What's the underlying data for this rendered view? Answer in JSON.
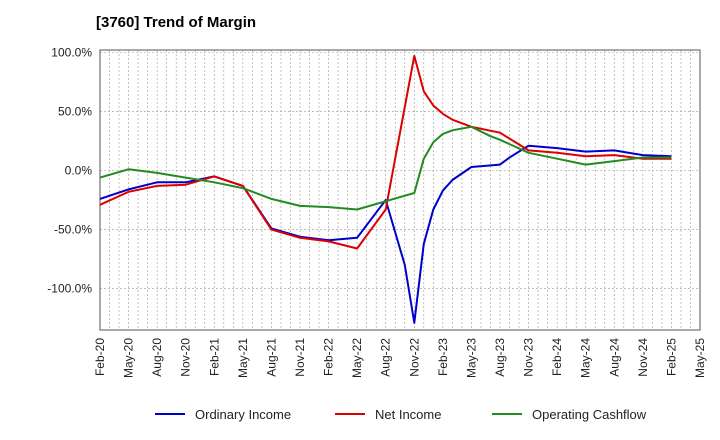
{
  "title": "[3760]  Trend of Margin",
  "colors": {
    "ordinary": "#0000cc",
    "net": "#dd0000",
    "cashflow": "#228b22",
    "grid": "#999999"
  },
  "chart_data": {
    "type": "line",
    "title": "[3760]  Trend of Margin",
    "xlabel": "",
    "ylabel": "",
    "x_tick_labels": [
      "Feb-20",
      "May-20",
      "Aug-20",
      "Nov-20",
      "Feb-21",
      "May-21",
      "Aug-21",
      "Nov-21",
      "Feb-22",
      "May-22",
      "Aug-22",
      "Nov-22",
      "Feb-23",
      "May-23",
      "Aug-23",
      "Nov-23",
      "Feb-24",
      "May-24",
      "Aug-24",
      "Nov-24",
      "Feb-25",
      "May-25"
    ],
    "y_tick_labels": [
      "100.0%",
      "50.0%",
      "0.0%",
      "-50.0%",
      "-100.0%"
    ],
    "y_tick_values": [
      100,
      50,
      0,
      -50,
      -100
    ],
    "ylim": [
      -135,
      102
    ],
    "x_range_months": [
      0,
      63
    ],
    "grid": true,
    "legend_position": "bottom",
    "series": [
      {
        "name": "Ordinary Income",
        "color": "#0000cc",
        "points": [
          [
            0,
            -24
          ],
          [
            3,
            -16
          ],
          [
            6,
            -10
          ],
          [
            9,
            -10
          ],
          [
            12,
            -5
          ],
          [
            15,
            -13
          ],
          [
            18,
            -49
          ],
          [
            21,
            -56
          ],
          [
            24,
            -59
          ],
          [
            27,
            -57
          ],
          [
            30,
            -25
          ],
          [
            32,
            -80
          ],
          [
            33,
            -129
          ],
          [
            34,
            -62
          ],
          [
            35,
            -33
          ],
          [
            36,
            -17
          ],
          [
            37,
            -8
          ],
          [
            39,
            3
          ],
          [
            42,
            5
          ],
          [
            43,
            11
          ],
          [
            45,
            21
          ],
          [
            48,
            19
          ],
          [
            51,
            16
          ],
          [
            54,
            17
          ],
          [
            57,
            13
          ],
          [
            60,
            12
          ]
        ]
      },
      {
        "name": "Net Income",
        "color": "#dd0000",
        "points": [
          [
            0,
            -29
          ],
          [
            3,
            -18
          ],
          [
            6,
            -13
          ],
          [
            9,
            -12
          ],
          [
            12,
            -5
          ],
          [
            15,
            -13
          ],
          [
            18,
            -50
          ],
          [
            21,
            -57
          ],
          [
            24,
            -60
          ],
          [
            27,
            -66
          ],
          [
            30,
            -33
          ],
          [
            33,
            97
          ],
          [
            34,
            67
          ],
          [
            35,
            55
          ],
          [
            36,
            48
          ],
          [
            37,
            43
          ],
          [
            39,
            37
          ],
          [
            42,
            32
          ],
          [
            45,
            17
          ],
          [
            48,
            15
          ],
          [
            51,
            12
          ],
          [
            54,
            13
          ],
          [
            57,
            10
          ],
          [
            60,
            10
          ]
        ]
      },
      {
        "name": "Operating Cashflow",
        "color": "#228b22",
        "points": [
          [
            0,
            -6
          ],
          [
            3,
            1
          ],
          [
            6,
            -2
          ],
          [
            9,
            -6
          ],
          [
            12,
            -10
          ],
          [
            15,
            -15
          ],
          [
            18,
            -24
          ],
          [
            21,
            -30
          ],
          [
            24,
            -31
          ],
          [
            27,
            -33
          ],
          [
            30,
            -26
          ],
          [
            33,
            -19
          ],
          [
            34,
            10
          ],
          [
            35,
            24
          ],
          [
            36,
            31
          ],
          [
            37,
            34
          ],
          [
            39,
            37
          ],
          [
            41,
            29
          ],
          [
            42,
            26
          ],
          [
            45,
            15
          ],
          [
            48,
            10
          ],
          [
            51,
            5
          ],
          [
            54,
            8
          ],
          [
            57,
            11
          ],
          [
            60,
            11
          ]
        ]
      }
    ]
  }
}
